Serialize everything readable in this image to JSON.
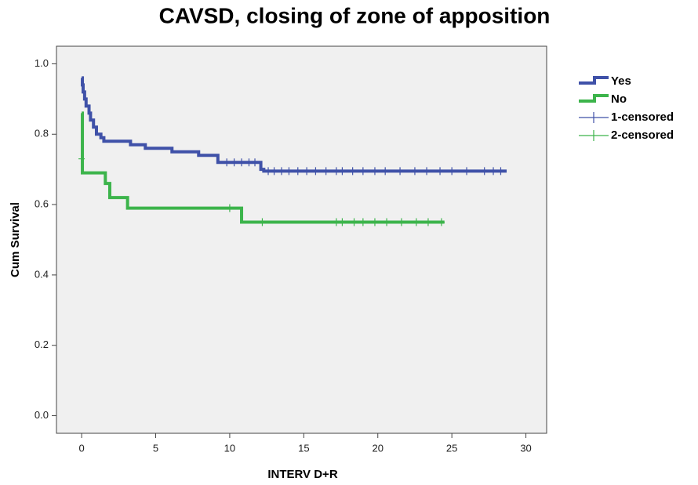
{
  "chart_data": {
    "type": "survival",
    "title": "CAVSD, closing of zone of apposition",
    "xlabel": "INTERV D+R",
    "ylabel": "Cum Survival",
    "xlim": [
      -1.7,
      31.4
    ],
    "ylim": [
      -0.05,
      1.05
    ],
    "xticks": [
      0,
      5,
      10,
      15,
      20,
      25,
      30
    ],
    "yticks": [
      {
        "value": 0,
        "label": "0.0"
      },
      {
        "value": 0.2,
        "label": "0.2"
      },
      {
        "value": 0.4,
        "label": "0.4"
      },
      {
        "value": 0.6,
        "label": "0.6"
      },
      {
        "value": 0.8,
        "label": "0.8"
      },
      {
        "value": 1.0,
        "label": "1.0"
      }
    ],
    "series": [
      {
        "name": "Yes",
        "style": "step",
        "color": "#3f51a8",
        "x": [
          0,
          0.05,
          0.1,
          0.2,
          0.3,
          0.5,
          0.6,
          0.8,
          1.0,
          1.3,
          1.5,
          3.3,
          4.3,
          6.1,
          7.9,
          9.2,
          12.1,
          12.3,
          28.7
        ],
        "values": [
          0.96,
          0.94,
          0.92,
          0.9,
          0.88,
          0.86,
          0.84,
          0.82,
          0.8,
          0.79,
          0.78,
          0.77,
          0.76,
          0.75,
          0.74,
          0.72,
          0.7,
          0.695,
          0.695
        ]
      },
      {
        "name": "No",
        "style": "step",
        "color": "#3cb44b",
        "x": [
          0,
          0.05,
          1.6,
          1.9,
          3.1,
          10.8,
          24.5
        ],
        "values": [
          0.86,
          0.69,
          0.66,
          0.62,
          0.59,
          0.55,
          0.55
        ]
      },
      {
        "name": "1-censored",
        "style": "censor",
        "color": "#3f51a8",
        "x": [
          9.8,
          10.3,
          10.8,
          11.3,
          11.7,
          12.6,
          13.0,
          13.5,
          14.0,
          14.6,
          15.2,
          15.8,
          16.5,
          17.2,
          17.6,
          18.3,
          19.0,
          19.8,
          20.5,
          21.5,
          22.5,
          23.3,
          24.2,
          25.0,
          26.0,
          27.2,
          27.8,
          28.3
        ],
        "values": [
          0.72,
          0.72,
          0.72,
          0.72,
          0.72,
          0.695,
          0.695,
          0.695,
          0.695,
          0.695,
          0.695,
          0.695,
          0.695,
          0.695,
          0.695,
          0.695,
          0.695,
          0.695,
          0.695,
          0.695,
          0.695,
          0.695,
          0.695,
          0.695,
          0.695,
          0.695,
          0.695,
          0.695
        ]
      },
      {
        "name": "2-censored",
        "style": "censor",
        "color": "#3cb44b",
        "x": [
          0,
          10.0,
          12.2,
          17.2,
          17.6,
          18.4,
          19.0,
          19.8,
          20.6,
          21.6,
          22.6,
          23.4,
          24.3
        ],
        "values": [
          0.73,
          0.59,
          0.55,
          0.55,
          0.55,
          0.55,
          0.55,
          0.55,
          0.55,
          0.55,
          0.55,
          0.55,
          0.55
        ]
      }
    ]
  }
}
